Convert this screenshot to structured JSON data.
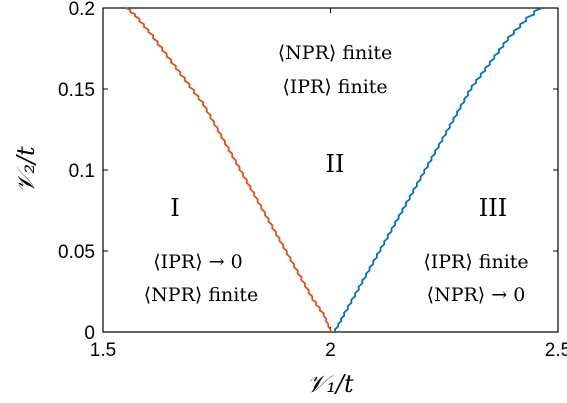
{
  "chart_data": {
    "type": "line",
    "title": "",
    "xlabel": "𝒱₁/t",
    "ylabel": "𝒱₂/t",
    "xlim": [
      1.5,
      2.5
    ],
    "ylim": [
      0,
      0.2
    ],
    "xticks": [
      1.5,
      2,
      2.5
    ],
    "xtick_labels": [
      "1.5",
      "2",
      "2.5"
    ],
    "yticks": [
      0,
      0.05,
      0.1,
      0.15,
      0.2
    ],
    "ytick_labels": [
      "0",
      "0.05",
      "0.1",
      "0.15",
      "0.2"
    ],
    "grid": false,
    "legend": "none",
    "series": [
      {
        "color": "#d95319",
        "x": [
          2.0,
          1.985,
          1.96,
          1.92,
          1.88,
          1.84,
          1.8,
          1.76,
          1.72,
          1.68,
          1.64,
          1.6,
          1.57,
          1.55
        ],
        "y": [
          0.0,
          0.01,
          0.02,
          0.04,
          0.06,
          0.08,
          0.1,
          0.12,
          0.14,
          0.155,
          0.17,
          0.185,
          0.195,
          0.2
        ]
      },
      {
        "color": "#0072bd",
        "x": [
          2.01,
          2.03,
          2.07,
          2.11,
          2.15,
          2.19,
          2.23,
          2.27,
          2.31,
          2.35,
          2.39,
          2.43,
          2.465
        ],
        "y": [
          0.0,
          0.01,
          0.03,
          0.05,
          0.07,
          0.09,
          0.11,
          0.13,
          0.15,
          0.165,
          0.18,
          0.192,
          0.2
        ]
      }
    ],
    "regions": [
      {
        "label": "I",
        "lines": [
          "⟨IPR⟩ → 0",
          "⟨NPR⟩ finite"
        ]
      },
      {
        "label": "II",
        "lines": [
          "⟨NPR⟩ finite",
          "⟨IPR⟩ finite"
        ]
      },
      {
        "label": "III",
        "lines": [
          "⟨IPR⟩ finite",
          "⟨NPR⟩ → 0"
        ]
      }
    ]
  }
}
